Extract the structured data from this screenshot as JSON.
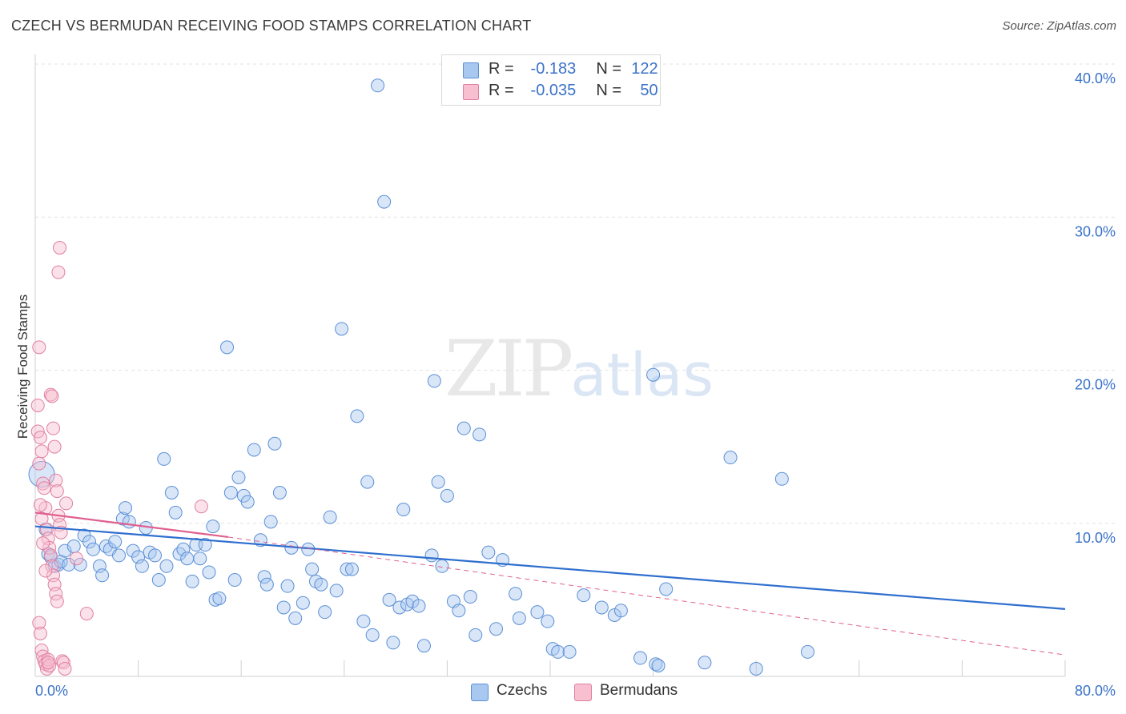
{
  "title": "CZECH VS BERMUDAN RECEIVING FOOD STAMPS CORRELATION CHART",
  "source": "Source: ZipAtlas.com",
  "watermark": {
    "zip": "ZIP",
    "atlas": "atlas"
  },
  "legend": {
    "rows": [
      {
        "r_label": "R =",
        "r_value": "-0.183",
        "n_label": "N =",
        "n_value": "122",
        "color": "#a9c8f0",
        "border": "#5b8fd6"
      },
      {
        "r_label": "R =",
        "r_value": "-0.035",
        "n_label": "N =",
        "n_value": "50",
        "color": "#f7bfd0",
        "border": "#e07fa0"
      }
    ]
  },
  "bottom_legend": [
    {
      "label": "Czechs",
      "color": "#a9c8f0",
      "border": "#5b8fd6"
    },
    {
      "label": "Bermudans",
      "color": "#f7bfd0",
      "border": "#e07fa0"
    }
  ],
  "chart_data": {
    "type": "scatter",
    "ylabel": "Receiving Food Stamps",
    "x_tick_labels": [
      {
        "value": 0,
        "label": "0.0%"
      },
      {
        "value": 80,
        "label": "80.0%"
      }
    ],
    "y_tick_labels": [
      {
        "value": 10,
        "label": "10.0%"
      },
      {
        "value": 20,
        "label": "20.0%"
      },
      {
        "value": 30,
        "label": "30.0%"
      },
      {
        "value": 40,
        "label": "40.0%"
      }
    ],
    "xlim": [
      0,
      80
    ],
    "ylim": [
      0,
      40
    ],
    "grid": true,
    "colors": {
      "czechs": "#5b8fd6",
      "bermudans": "#e07fa0",
      "czech_line": "#2f6fcf",
      "bermudan_line": "#e0608f"
    },
    "series": [
      {
        "name": "Czechs",
        "trend": {
          "x": [
            0,
            80
          ],
          "y": [
            9.8,
            4.4
          ]
        },
        "points": [
          [
            0.5,
            13.2
          ],
          [
            0.8,
            9.6
          ],
          [
            1.0,
            8.0
          ],
          [
            1.2,
            7.8
          ],
          [
            1.5,
            7.2
          ],
          [
            1.8,
            7.3
          ],
          [
            2.0,
            7.5
          ],
          [
            2.3,
            8.2
          ],
          [
            2.6,
            7.3
          ],
          [
            3.0,
            8.5
          ],
          [
            3.5,
            7.3
          ],
          [
            3.8,
            9.2
          ],
          [
            4.2,
            8.8
          ],
          [
            4.5,
            8.3
          ],
          [
            5.0,
            7.2
          ],
          [
            5.2,
            6.6
          ],
          [
            5.5,
            8.5
          ],
          [
            5.8,
            8.3
          ],
          [
            6.2,
            8.8
          ],
          [
            6.5,
            7.9
          ],
          [
            6.8,
            10.3
          ],
          [
            7.0,
            11.0
          ],
          [
            7.3,
            10.1
          ],
          [
            7.6,
            8.2
          ],
          [
            8.0,
            7.8
          ],
          [
            8.3,
            7.2
          ],
          [
            8.6,
            9.7
          ],
          [
            8.9,
            8.1
          ],
          [
            9.3,
            7.9
          ],
          [
            9.6,
            6.3
          ],
          [
            10.0,
            14.2
          ],
          [
            10.2,
            7.2
          ],
          [
            10.6,
            12.0
          ],
          [
            10.9,
            10.7
          ],
          [
            11.2,
            8.0
          ],
          [
            11.5,
            8.3
          ],
          [
            11.8,
            7.7
          ],
          [
            12.2,
            6.2
          ],
          [
            12.5,
            8.6
          ],
          [
            12.8,
            7.7
          ],
          [
            13.2,
            8.6
          ],
          [
            13.5,
            6.8
          ],
          [
            13.8,
            9.8
          ],
          [
            14.0,
            5.0
          ],
          [
            14.3,
            5.1
          ],
          [
            14.9,
            21.5
          ],
          [
            15.2,
            12.0
          ],
          [
            15.5,
            6.3
          ],
          [
            15.8,
            13.0
          ],
          [
            16.2,
            11.8
          ],
          [
            16.5,
            11.4
          ],
          [
            17.0,
            14.8
          ],
          [
            17.5,
            8.9
          ],
          [
            17.8,
            6.5
          ],
          [
            18.0,
            6.0
          ],
          [
            18.3,
            10.1
          ],
          [
            18.6,
            15.2
          ],
          [
            19.0,
            12.0
          ],
          [
            19.3,
            4.5
          ],
          [
            19.6,
            5.9
          ],
          [
            19.9,
            8.4
          ],
          [
            20.2,
            3.8
          ],
          [
            20.8,
            4.8
          ],
          [
            21.2,
            8.3
          ],
          [
            21.5,
            7.0
          ],
          [
            21.8,
            6.2
          ],
          [
            22.2,
            6.0
          ],
          [
            22.5,
            4.2
          ],
          [
            22.9,
            10.4
          ],
          [
            23.4,
            5.6
          ],
          [
            23.8,
            22.7
          ],
          [
            24.2,
            7.0
          ],
          [
            24.6,
            7.0
          ],
          [
            25.0,
            17.0
          ],
          [
            25.5,
            3.6
          ],
          [
            25.8,
            12.7
          ],
          [
            26.2,
            2.7
          ],
          [
            26.6,
            38.6
          ],
          [
            27.1,
            31.0
          ],
          [
            27.5,
            5.0
          ],
          [
            27.8,
            2.2
          ],
          [
            28.3,
            4.5
          ],
          [
            28.6,
            10.9
          ],
          [
            28.9,
            4.7
          ],
          [
            29.3,
            4.9
          ],
          [
            29.8,
            4.6
          ],
          [
            30.2,
            2.0
          ],
          [
            30.8,
            7.9
          ],
          [
            31.0,
            19.3
          ],
          [
            31.3,
            12.7
          ],
          [
            31.6,
            7.2
          ],
          [
            32.0,
            11.8
          ],
          [
            32.5,
            4.9
          ],
          [
            32.9,
            4.3
          ],
          [
            33.3,
            16.2
          ],
          [
            33.8,
            5.2
          ],
          [
            34.2,
            2.7
          ],
          [
            34.5,
            15.8
          ],
          [
            35.2,
            8.1
          ],
          [
            35.8,
            3.1
          ],
          [
            36.3,
            7.6
          ],
          [
            37.3,
            5.4
          ],
          [
            37.6,
            3.8
          ],
          [
            39.0,
            4.2
          ],
          [
            39.8,
            3.6
          ],
          [
            40.2,
            1.8
          ],
          [
            40.6,
            1.6
          ],
          [
            41.5,
            1.6
          ],
          [
            42.6,
            5.3
          ],
          [
            44.0,
            4.5
          ],
          [
            45.0,
            4.0
          ],
          [
            45.5,
            4.3
          ],
          [
            47.0,
            1.2
          ],
          [
            48.0,
            19.7
          ],
          [
            48.2,
            0.8
          ],
          [
            48.4,
            0.7
          ],
          [
            49.0,
            5.7
          ],
          [
            52.0,
            0.9
          ],
          [
            54.0,
            14.3
          ],
          [
            56.0,
            0.5
          ],
          [
            58.0,
            12.9
          ],
          [
            60.0,
            1.6
          ]
        ]
      },
      {
        "name": "Bermudans",
        "trend": {
          "x": [
            0,
            15
          ],
          "y": [
            10.7,
            9.1
          ]
        },
        "points": [
          [
            0.2,
            16.0
          ],
          [
            0.3,
            21.5
          ],
          [
            0.4,
            15.6
          ],
          [
            0.5,
            14.7
          ],
          [
            0.6,
            12.6
          ],
          [
            0.7,
            12.3
          ],
          [
            0.8,
            11.0
          ],
          [
            0.9,
            9.6
          ],
          [
            1.0,
            9.0
          ],
          [
            1.1,
            8.4
          ],
          [
            1.2,
            7.9
          ],
          [
            1.3,
            7.2
          ],
          [
            1.4,
            6.6
          ],
          [
            1.5,
            6.0
          ],
          [
            1.6,
            5.4
          ],
          [
            1.7,
            4.9
          ],
          [
            0.3,
            3.5
          ],
          [
            0.4,
            2.8
          ],
          [
            0.5,
            1.7
          ],
          [
            0.6,
            1.3
          ],
          [
            0.7,
            1.0
          ],
          [
            0.8,
            0.8
          ],
          [
            0.9,
            0.5
          ],
          [
            1.0,
            1.1
          ],
          [
            1.1,
            0.7
          ],
          [
            1.2,
            18.4
          ],
          [
            1.3,
            18.3
          ],
          [
            1.4,
            16.2
          ],
          [
            1.5,
            15.0
          ],
          [
            1.6,
            12.8
          ],
          [
            1.7,
            12.1
          ],
          [
            1.8,
            10.5
          ],
          [
            1.9,
            9.9
          ],
          [
            2.0,
            9.4
          ],
          [
            0.2,
            17.7
          ],
          [
            0.3,
            13.9
          ],
          [
            0.4,
            11.2
          ],
          [
            0.5,
            10.3
          ],
          [
            0.6,
            8.7
          ],
          [
            2.1,
            1.0
          ],
          [
            2.2,
            0.9
          ],
          [
            2.3,
            0.5
          ],
          [
            1.8,
            26.4
          ],
          [
            1.9,
            28.0
          ],
          [
            2.4,
            11.3
          ],
          [
            3.2,
            7.7
          ],
          [
            4.0,
            4.1
          ],
          [
            12.9,
            11.1
          ],
          [
            1.0,
            0.9
          ],
          [
            0.8,
            6.9
          ]
        ]
      }
    ]
  }
}
